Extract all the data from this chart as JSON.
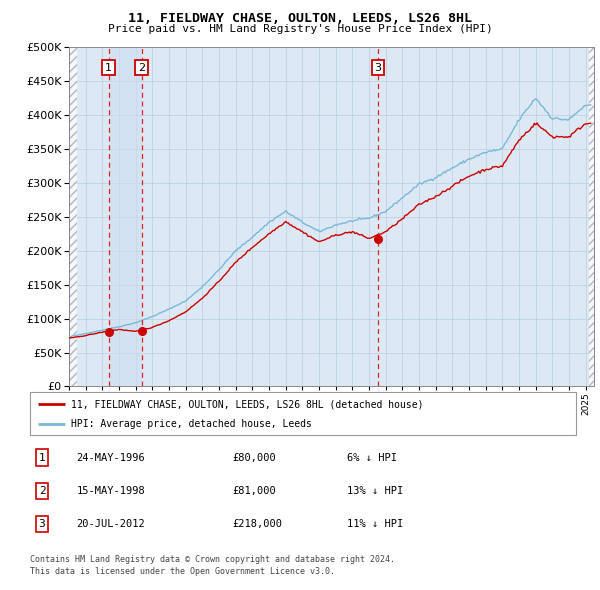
{
  "title": "11, FIELDWAY CHASE, OULTON, LEEDS, LS26 8HL",
  "subtitle": "Price paid vs. HM Land Registry's House Price Index (HPI)",
  "legend_line1": "11, FIELDWAY CHASE, OULTON, LEEDS, LS26 8HL (detached house)",
  "legend_line2": "HPI: Average price, detached house, Leeds",
  "footer1": "Contains HM Land Registry data © Crown copyright and database right 2024.",
  "footer2": "This data is licensed under the Open Government Licence v3.0.",
  "sales": [
    {
      "num": 1,
      "date": "24-MAY-1996",
      "price": 80000,
      "pct": "6%",
      "dir": "↓",
      "x": 1996.38
    },
    {
      "num": 2,
      "date": "15-MAY-1998",
      "price": 81000,
      "pct": "13%",
      "dir": "↓",
      "x": 1998.37
    },
    {
      "num": 3,
      "date": "20-JUL-2012",
      "price": 218000,
      "pct": "11%",
      "dir": "↓",
      "x": 2012.55
    }
  ],
  "hpi_color": "#7ab8d9",
  "property_color": "#cc0000",
  "vline_color": "#dd2222",
  "box_color": "#cc0000",
  "background_color": "#dce9f5",
  "ylim": [
    0,
    500000
  ],
  "xlim_start": 1994.0,
  "xlim_end": 2025.5
}
